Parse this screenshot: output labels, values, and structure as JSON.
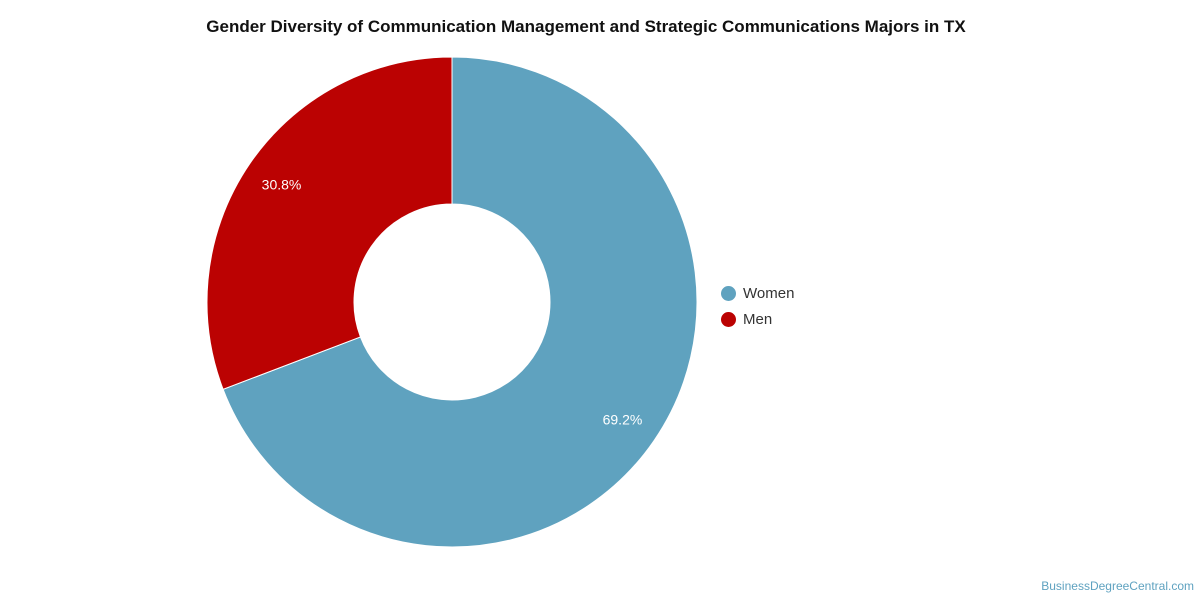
{
  "chart_data": {
    "type": "pie",
    "title": "Gender Diversity of Communication Management and Strategic Communications Majors in TX",
    "series": [
      {
        "name": "Women",
        "value": 69.2,
        "label": "69.2%",
        "color": "#5fa2bf"
      },
      {
        "name": "Men",
        "value": 30.8,
        "label": "30.8%",
        "color": "#bb0202"
      }
    ],
    "legend_position": "right"
  },
  "source": "BusinessDegreeCentral.com"
}
